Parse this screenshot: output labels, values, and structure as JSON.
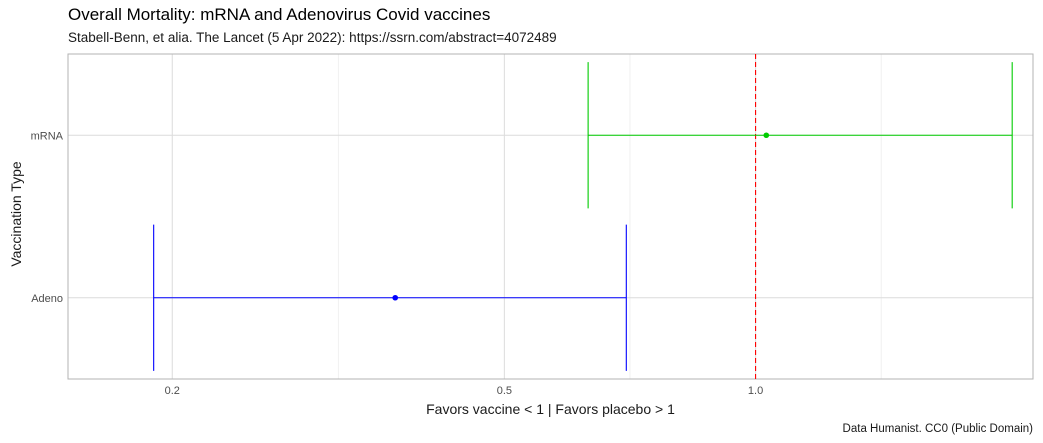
{
  "chart_data": {
    "type": "errorbar",
    "title": "Overall Mortality: mRNA and Adenovirus Covid vaccines",
    "subtitle": "Stabell-Benn, et alia. The Lancet (5 Apr 2022): https://ssrn.com/abstract=4072489",
    "caption": "Data Humanist. CC0 (Public Domain)",
    "xlabel": "Favors vaccine < 1  | Favors placebo > 1",
    "ylabel": "Vaccination Type",
    "x_scale": "log",
    "xlim": [
      0.15,
      2.15
    ],
    "x_ticks": [
      0.2,
      0.5,
      1.0
    ],
    "x_tick_labels": [
      "0.2",
      "0.5",
      "1.0"
    ],
    "reference_line": {
      "x": 1.0,
      "color": "#ff0000",
      "style": "dashed"
    },
    "categories": [
      "mRNA",
      "Adeno"
    ],
    "estimates": [
      {
        "category": "mRNA",
        "estimate": 1.03,
        "lower": 0.63,
        "upper": 2.03,
        "color": "#00cc00"
      },
      {
        "category": "Adeno",
        "estimate": 0.37,
        "lower": 0.19,
        "upper": 0.7,
        "color": "#0000ff"
      }
    ],
    "grid": true
  }
}
